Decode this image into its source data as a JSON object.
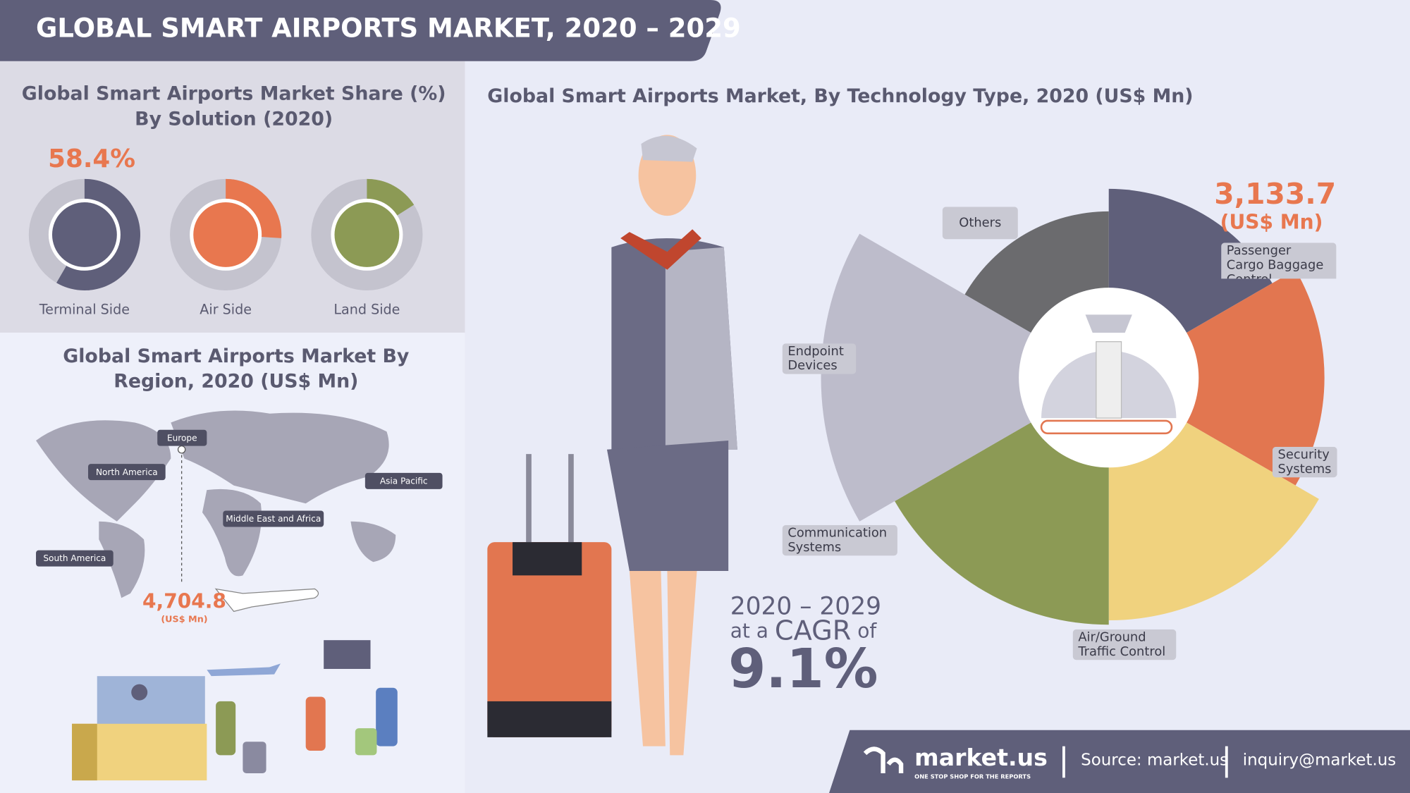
{
  "header": {
    "title": "GLOBAL SMART AIRPORTS MARKET, 2020 – 2029"
  },
  "chart_data": [
    {
      "type": "donut",
      "title": "Global Smart Airports Market Share (%) By Solution (2020)",
      "categories": [
        "Terminal Side",
        "Air Side",
        "Land Side"
      ],
      "values": [
        58.4,
        26,
        16
      ],
      "value_labels": [
        "58.4%",
        null,
        null
      ],
      "colors": [
        "#5f5f7a",
        "#e8774f",
        "#8c9a55"
      ]
    },
    {
      "type": "polar",
      "title": "Global Smart Airports Market, By Technology Type, 2020 (US$ Mn)",
      "categories": [
        "Passenger Cargo Baggage Control",
        "Security Systems",
        "Air/Ground Traffic Control",
        "Communication Systems",
        "Endpoint Devices",
        "Others"
      ],
      "values": [
        3133.7,
        4090,
        5180,
        5370,
        7280,
        2430
      ],
      "value_labels": [
        "3,133.7",
        null,
        null,
        null,
        null,
        null
      ],
      "unit": "(US$ Mn)",
      "colors": [
        "#5f5f7a",
        "#e27650",
        "#f0d27e",
        "#8c9a55",
        "#bdbccb",
        "#6b6b6e"
      ]
    }
  ],
  "region": {
    "title": "Global Smart Airports Market By Region, 2020 (US$ Mn)",
    "regions": [
      "Europe",
      "North America",
      "Asia Pacific",
      "Middle East and Africa",
      "South America"
    ],
    "value": "4,704.8",
    "unit": "(US$ Mn)"
  },
  "cagr": {
    "period": "2020 – 2029",
    "prefix": "at a",
    "word": "CAGR",
    "suffix": "of",
    "value": "9.1%"
  },
  "footer": {
    "brand": "market.us",
    "tagline": "ONE STOP SHOP FOR THE REPORTS",
    "source": "Source: market.us",
    "email": "inquiry@market.us"
  }
}
